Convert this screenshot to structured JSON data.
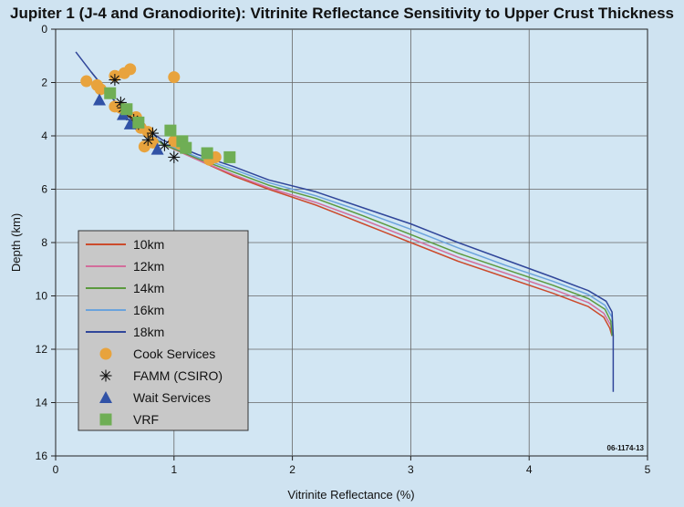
{
  "chart_data": {
    "type": "line",
    "title": "Jupiter 1 (J-4 and Granodiorite): Vitrinite Reflectance Sensitivity to Upper Crust Thickness",
    "xlabel": "Vitrinite Reflectance (%)",
    "ylabel": "Depth (km)",
    "xlim": [
      0,
      5
    ],
    "ylim": [
      16,
      0
    ],
    "xticks": [
      "0",
      "1",
      "2",
      "3",
      "4",
      "5"
    ],
    "yticks": [
      "0",
      "2",
      "4",
      "6",
      "8",
      "10",
      "12",
      "14",
      "16"
    ],
    "grid": true,
    "legend_position": "bottom-left",
    "reference_code": "06-1174-13",
    "series": [
      {
        "name": "10km",
        "color": "#cc4b2c",
        "points": [
          [
            0.3,
            1.6
          ],
          [
            0.5,
            2.7
          ],
          [
            0.7,
            3.6
          ],
          [
            0.9,
            4.3
          ],
          [
            1.2,
            4.9
          ],
          [
            1.5,
            5.5
          ],
          [
            1.8,
            6.0
          ],
          [
            2.2,
            6.6
          ],
          [
            2.6,
            7.3
          ],
          [
            3.0,
            8.0
          ],
          [
            3.4,
            8.7
          ],
          [
            3.8,
            9.3
          ],
          [
            4.2,
            9.9
          ],
          [
            4.5,
            10.4
          ],
          [
            4.63,
            10.8
          ],
          [
            4.68,
            11.2
          ],
          [
            4.7,
            11.5
          ]
        ]
      },
      {
        "name": "12km",
        "color": "#d36d9b",
        "points": [
          [
            0.3,
            1.6
          ],
          [
            0.5,
            2.7
          ],
          [
            0.7,
            3.6
          ],
          [
            0.9,
            4.3
          ],
          [
            1.2,
            4.9
          ],
          [
            1.5,
            5.45
          ],
          [
            1.8,
            5.95
          ],
          [
            2.2,
            6.5
          ],
          [
            2.6,
            7.15
          ],
          [
            3.0,
            7.85
          ],
          [
            3.4,
            8.55
          ],
          [
            3.8,
            9.15
          ],
          [
            4.2,
            9.75
          ],
          [
            4.5,
            10.25
          ],
          [
            4.63,
            10.65
          ],
          [
            4.69,
            11.1
          ],
          [
            4.7,
            11.5
          ]
        ]
      },
      {
        "name": "14km",
        "color": "#5b9a3e",
        "points": [
          [
            0.3,
            1.6
          ],
          [
            0.5,
            2.7
          ],
          [
            0.7,
            3.6
          ],
          [
            0.9,
            4.3
          ],
          [
            1.2,
            4.85
          ],
          [
            1.5,
            5.35
          ],
          [
            1.8,
            5.85
          ],
          [
            2.2,
            6.35
          ],
          [
            2.6,
            7.0
          ],
          [
            3.0,
            7.7
          ],
          [
            3.4,
            8.4
          ],
          [
            3.8,
            9.0
          ],
          [
            4.2,
            9.6
          ],
          [
            4.5,
            10.1
          ],
          [
            4.64,
            10.5
          ],
          [
            4.69,
            10.95
          ],
          [
            4.7,
            11.5
          ]
        ]
      },
      {
        "name": "16km",
        "color": "#6ba3dc",
        "points": [
          [
            0.3,
            1.6
          ],
          [
            0.5,
            2.7
          ],
          [
            0.7,
            3.6
          ],
          [
            0.9,
            4.25
          ],
          [
            1.2,
            4.8
          ],
          [
            1.5,
            5.25
          ],
          [
            1.8,
            5.75
          ],
          [
            2.2,
            6.25
          ],
          [
            2.6,
            6.85
          ],
          [
            3.0,
            7.5
          ],
          [
            3.4,
            8.2
          ],
          [
            3.8,
            8.85
          ],
          [
            4.2,
            9.45
          ],
          [
            4.5,
            9.95
          ],
          [
            4.64,
            10.35
          ],
          [
            4.7,
            10.8
          ],
          [
            4.71,
            11.5
          ]
        ]
      },
      {
        "name": "18km",
        "color": "#30469a",
        "points": [
          [
            0.17,
            0.85
          ],
          [
            0.3,
            1.6
          ],
          [
            0.5,
            2.7
          ],
          [
            0.7,
            3.55
          ],
          [
            0.9,
            4.15
          ],
          [
            1.2,
            4.7
          ],
          [
            1.5,
            5.15
          ],
          [
            1.8,
            5.65
          ],
          [
            2.2,
            6.1
          ],
          [
            2.6,
            6.7
          ],
          [
            3.0,
            7.3
          ],
          [
            3.4,
            8.0
          ],
          [
            3.8,
            8.65
          ],
          [
            4.2,
            9.3
          ],
          [
            4.5,
            9.8
          ],
          [
            4.65,
            10.2
          ],
          [
            4.7,
            10.6
          ],
          [
            4.71,
            11.5
          ],
          [
            4.71,
            13.6
          ]
        ]
      }
    ],
    "markers": [
      {
        "name": "Cook Services",
        "shape": "circle",
        "color": "#e8a33d",
        "points": [
          [
            0.26,
            1.95
          ],
          [
            0.35,
            2.1
          ],
          [
            0.38,
            2.25
          ],
          [
            0.5,
            1.75
          ],
          [
            0.58,
            1.65
          ],
          [
            0.63,
            1.5
          ],
          [
            0.5,
            2.9
          ],
          [
            0.55,
            2.95
          ],
          [
            0.6,
            3.1
          ],
          [
            0.68,
            3.3
          ],
          [
            0.78,
            3.85
          ],
          [
            0.72,
            3.7
          ],
          [
            0.75,
            4.4
          ],
          [
            0.82,
            4.25
          ],
          [
            1.0,
            1.8
          ],
          [
            1.0,
            4.2
          ],
          [
            1.05,
            4.3
          ],
          [
            1.3,
            4.9
          ],
          [
            1.35,
            4.8
          ]
        ]
      },
      {
        "name": "FAMM (CSIRO)",
        "shape": "asterisk",
        "color": "#111111",
        "points": [
          [
            0.5,
            1.9
          ],
          [
            0.55,
            2.75
          ],
          [
            0.57,
            2.95
          ],
          [
            0.6,
            3.2
          ],
          [
            0.66,
            3.4
          ],
          [
            0.7,
            3.55
          ],
          [
            0.78,
            4.15
          ],
          [
            0.82,
            3.9
          ],
          [
            0.92,
            4.35
          ],
          [
            1.0,
            4.8
          ]
        ]
      },
      {
        "name": "Wait Services",
        "shape": "triangle",
        "color": "#3152a6",
        "points": [
          [
            0.37,
            2.65
          ],
          [
            0.57,
            3.2
          ],
          [
            0.63,
            3.55
          ],
          [
            0.86,
            4.5
          ]
        ]
      },
      {
        "name": "VRF",
        "shape": "square",
        "color": "#6fae55",
        "points": [
          [
            0.46,
            2.4
          ],
          [
            0.6,
            3.0
          ],
          [
            0.7,
            3.5
          ],
          [
            0.97,
            3.8
          ],
          [
            1.07,
            4.2
          ],
          [
            1.1,
            4.45
          ],
          [
            1.28,
            4.65
          ],
          [
            1.47,
            4.8
          ]
        ]
      }
    ]
  }
}
